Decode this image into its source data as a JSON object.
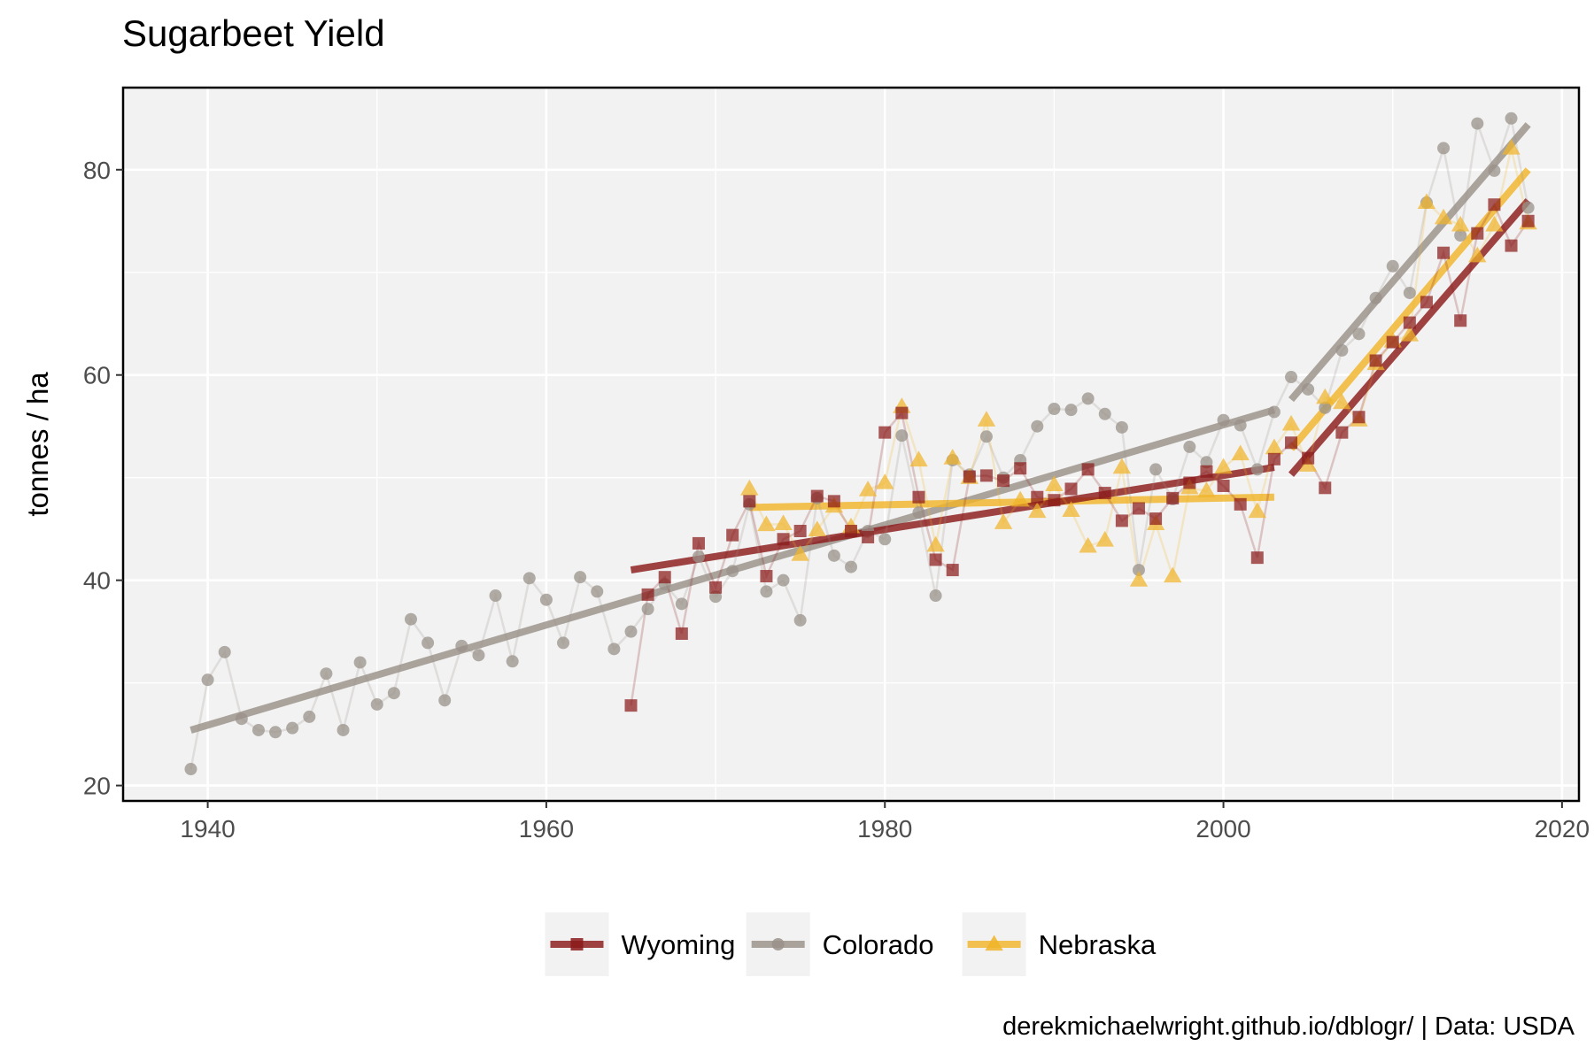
{
  "chart_data": {
    "type": "line",
    "title": "Sugarbeet Yield",
    "xlabel": "",
    "ylabel": "tonnes / ha",
    "caption": "derekmichaelwright.github.io/dblogr/ | Data: USDA",
    "xlim": [
      1935,
      2021
    ],
    "ylim": [
      18.5,
      88
    ],
    "x_ticks": [
      1940,
      1960,
      1980,
      2000,
      2020
    ],
    "y_ticks": [
      20,
      40,
      60,
      80
    ],
    "grid": true,
    "legend_position": "bottom",
    "series": [
      {
        "name": "Wyoming",
        "color": "#8b1a1a",
        "marker": "square",
        "x": [
          1965,
          1966,
          1967,
          1968,
          1969,
          1970,
          1971,
          1972,
          1973,
          1974,
          1975,
          1976,
          1977,
          1978,
          1979,
          1980,
          1981,
          1982,
          1983,
          1984,
          1985,
          1986,
          1987,
          1988,
          1989,
          1990,
          1991,
          1992,
          1993,
          1994,
          1995,
          1996,
          1997,
          1998,
          1999,
          2000,
          2001,
          2002,
          2003,
          2004,
          2005,
          2006,
          2007,
          2008,
          2009,
          2010,
          2011,
          2012,
          2013,
          2014,
          2015,
          2016,
          2017,
          2018
        ],
        "y": [
          27.8,
          38.6,
          40.3,
          34.8,
          43.6,
          39.3,
          44.4,
          47.7,
          40.4,
          44.0,
          44.8,
          48.2,
          47.7,
          44.8,
          44.2,
          54.4,
          56.3,
          48.1,
          42.0,
          41.0,
          50.1,
          50.2,
          49.7,
          50.9,
          48.1,
          47.8,
          48.9,
          50.8,
          48.5,
          45.8,
          47.0,
          46.0,
          48.0,
          49.5,
          50.6,
          49.2,
          47.4,
          42.2,
          51.8,
          53.4,
          51.9,
          49.0,
          54.4,
          55.9,
          61.4,
          63.2,
          65.1,
          67.1,
          71.9,
          65.3,
          73.8,
          76.6,
          72.6,
          75.0
        ],
        "trend_segments": [
          {
            "x": [
              1965,
              2003
            ],
            "y": [
              41.0,
              51.0
            ]
          },
          {
            "x": [
              2004,
              2018
            ],
            "y": [
              50.3,
              77.0
            ]
          }
        ]
      },
      {
        "name": "Colorado",
        "color": "#9a9189",
        "marker": "circle",
        "x": [
          1939,
          1940,
          1941,
          1942,
          1943,
          1944,
          1945,
          1946,
          1947,
          1948,
          1949,
          1950,
          1951,
          1952,
          1953,
          1954,
          1955,
          1956,
          1957,
          1958,
          1959,
          1960,
          1961,
          1962,
          1963,
          1964,
          1965,
          1966,
          1967,
          1968,
          1969,
          1970,
          1971,
          1972,
          1973,
          1974,
          1975,
          1976,
          1977,
          1978,
          1979,
          1980,
          1981,
          1982,
          1983,
          1984,
          1985,
          1986,
          1987,
          1988,
          1989,
          1990,
          1991,
          1992,
          1993,
          1994,
          1995,
          1996,
          1997,
          1998,
          1999,
          2000,
          2001,
          2002,
          2003,
          2004,
          2005,
          2006,
          2007,
          2008,
          2009,
          2010,
          2011,
          2012,
          2013,
          2014,
          2015,
          2016,
          2017,
          2018
        ],
        "y": [
          21.6,
          30.3,
          33.0,
          26.5,
          25.4,
          25.2,
          25.6,
          26.7,
          30.9,
          25.4,
          32.0,
          27.9,
          29.0,
          36.2,
          33.9,
          28.3,
          33.6,
          32.7,
          38.5,
          32.1,
          40.2,
          38.1,
          33.9,
          40.3,
          38.9,
          33.3,
          35.0,
          37.2,
          39.6,
          37.7,
          42.3,
          38.4,
          40.9,
          47.4,
          38.9,
          40.0,
          36.1,
          48.0,
          42.4,
          41.3,
          44.8,
          44.0,
          54.1,
          46.6,
          38.5,
          51.7,
          50.3,
          54.0,
          50.0,
          51.7,
          55.0,
          56.7,
          56.6,
          57.7,
          56.2,
          54.9,
          41.0,
          50.8,
          47.9,
          53.0,
          51.5,
          55.6,
          55.1,
          50.8,
          56.4,
          59.8,
          58.6,
          56.8,
          62.4,
          64.0,
          67.5,
          70.6,
          68.0,
          76.8,
          82.1,
          73.6,
          84.5,
          79.9,
          85.0,
          76.3
        ],
        "trend_segments": [
          {
            "x": [
              1939,
              2003
            ],
            "y": [
              25.4,
              56.6
            ]
          },
          {
            "x": [
              2004,
              2018
            ],
            "y": [
              57.6,
              84.4
            ]
          }
        ]
      },
      {
        "name": "Nebraska",
        "color": "#f0b429",
        "marker": "triangle",
        "x": [
          1972,
          1973,
          1974,
          1975,
          1976,
          1977,
          1978,
          1979,
          1980,
          1981,
          1982,
          1983,
          1984,
          1985,
          1986,
          1987,
          1988,
          1989,
          1990,
          1991,
          1992,
          1993,
          1994,
          1995,
          1996,
          1997,
          1998,
          1999,
          2000,
          2001,
          2002,
          2003,
          2004,
          2005,
          2006,
          2007,
          2008,
          2009,
          2010,
          2011,
          2012,
          2013,
          2014,
          2015,
          2016,
          2017,
          2018
        ],
        "y": [
          48.9,
          45.4,
          45.5,
          42.5,
          44.9,
          47.2,
          45.2,
          48.8,
          49.5,
          56.9,
          51.7,
          43.4,
          51.9,
          50.0,
          55.6,
          45.6,
          47.8,
          46.7,
          49.3,
          46.8,
          43.3,
          43.9,
          51.0,
          40.0,
          45.5,
          40.4,
          49.0,
          48.7,
          51.0,
          52.3,
          46.7,
          52.9,
          55.2,
          51.2,
          57.8,
          57.3,
          55.6,
          61.1,
          63.3,
          63.9,
          76.8,
          75.3,
          74.6,
          71.6,
          74.6,
          82.1,
          74.8
        ],
        "trend_segments": [
          {
            "x": [
              1972,
              2003
            ],
            "y": [
              47.1,
              48.1
            ]
          },
          {
            "x": [
              2004,
              2018
            ],
            "y": [
              52.8,
              80.0
            ]
          }
        ]
      }
    ]
  }
}
